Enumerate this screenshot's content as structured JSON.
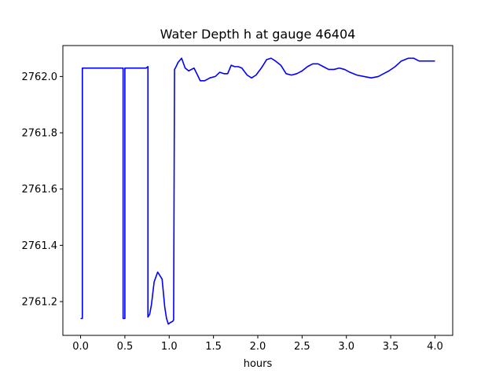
{
  "chart_data": {
    "type": "line",
    "title": "Water Depth h at gauge 46404",
    "xlabel": "hours",
    "ylabel": "",
    "xlim": [
      -0.2,
      4.2
    ],
    "ylim": [
      2761.08,
      2762.11
    ],
    "xticks": [
      0.0,
      0.5,
      1.0,
      1.5,
      2.0,
      2.5,
      3.0,
      3.5,
      4.0
    ],
    "xtick_labels": [
      "0.0",
      "0.5",
      "1.0",
      "1.5",
      "2.0",
      "2.5",
      "3.0",
      "3.5",
      "4.0"
    ],
    "yticks": [
      2761.2,
      2761.4,
      2761.6,
      2761.8,
      2762.0
    ],
    "ytick_labels": [
      "2761.2",
      "2761.4",
      "2761.6",
      "2761.8",
      "2762.0"
    ],
    "grid": false,
    "legend": "none",
    "series": [
      {
        "color": "#0000ff",
        "x": [
          0.0,
          0.02,
          0.02,
          0.47,
          0.48,
          0.48,
          0.5,
          0.5,
          0.52,
          0.52,
          0.74,
          0.76,
          0.76,
          0.78,
          0.8,
          0.83,
          0.87,
          0.92,
          0.95,
          0.97,
          0.99,
          1.01,
          1.04,
          1.05,
          1.06,
          1.07,
          1.1,
          1.14,
          1.18,
          1.22,
          1.28,
          1.32,
          1.35,
          1.4,
          1.46,
          1.52,
          1.57,
          1.62,
          1.66,
          1.7,
          1.74,
          1.78,
          1.82,
          1.88,
          1.93,
          1.98,
          2.04,
          2.1,
          2.15,
          2.2,
          2.26,
          2.32,
          2.38,
          2.44,
          2.5,
          2.56,
          2.62,
          2.68,
          2.74,
          2.8,
          2.86,
          2.92,
          2.98,
          3.04,
          3.12,
          3.2,
          3.28,
          3.36,
          3.42,
          3.48,
          3.55,
          3.62,
          3.7,
          3.76,
          3.82,
          3.88,
          3.94,
          4.0
        ],
        "y": [
          2761.14,
          2761.14,
          2762.03,
          2762.03,
          2762.03,
          2761.14,
          2761.14,
          2762.03,
          2762.03,
          2762.03,
          2762.03,
          2762.035,
          2761.145,
          2761.155,
          2761.19,
          2761.27,
          2761.305,
          2761.28,
          2761.18,
          2761.14,
          2761.12,
          2761.125,
          2761.13,
          2761.135,
          2762.025,
          2762.03,
          2762.05,
          2762.065,
          2762.03,
          2762.02,
          2762.03,
          2762.005,
          2761.985,
          2761.985,
          2761.995,
          2762.0,
          2762.015,
          2762.01,
          2762.01,
          2762.04,
          2762.035,
          2762.035,
          2762.03,
          2762.005,
          2761.995,
          2762.005,
          2762.03,
          2762.06,
          2762.065,
          2762.055,
          2762.04,
          2762.01,
          2762.005,
          2762.01,
          2762.02,
          2762.035,
          2762.045,
          2762.045,
          2762.035,
          2762.025,
          2762.025,
          2762.03,
          2762.025,
          2762.015,
          2762.005,
          2762.0,
          2761.995,
          2762.0,
          2762.01,
          2762.02,
          2762.035,
          2762.055,
          2762.065,
          2762.065,
          2762.055,
          2762.055,
          2762.055,
          2762.055
        ]
      }
    ]
  }
}
